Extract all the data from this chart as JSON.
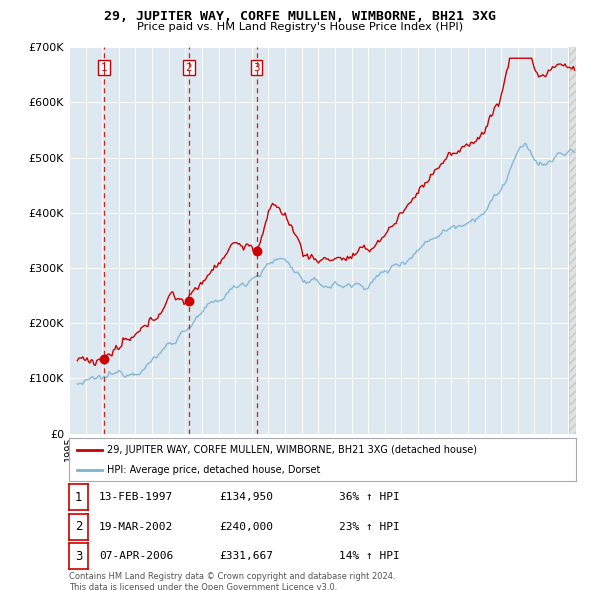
{
  "title": "29, JUPITER WAY, CORFE MULLEN, WIMBORNE, BH21 3XG",
  "subtitle": "Price paid vs. HM Land Registry's House Price Index (HPI)",
  "legend_line1": "29, JUPITER WAY, CORFE MULLEN, WIMBORNE, BH21 3XG (detached house)",
  "legend_line2": "HPI: Average price, detached house, Dorset",
  "footer1": "Contains HM Land Registry data © Crown copyright and database right 2024.",
  "footer2": "This data is licensed under the Open Government Licence v3.0.",
  "sale_dates_num": [
    1997.12,
    2002.22,
    2006.28
  ],
  "sale_prices": [
    134950,
    240000,
    331667
  ],
  "sale_labels": [
    "1",
    "2",
    "3"
  ],
  "sale_info": [
    {
      "label": "1",
      "date": "13-FEB-1997",
      "price": "£134,950",
      "hpi": "36% ↑ HPI"
    },
    {
      "label": "2",
      "date": "19-MAR-2002",
      "price": "£240,000",
      "hpi": "23% ↑ HPI"
    },
    {
      "label": "3",
      "date": "07-APR-2006",
      "price": "£331,667",
      "hpi": "14% ↑ HPI"
    }
  ],
  "hpi_color": "#7ab3d4",
  "price_color": "#cc0000",
  "plot_bg": "#dde8f0",
  "vline_color": "#cc0000",
  "grid_color": "#ffffff",
  "ylim": [
    0,
    700000
  ],
  "xlim_start": 1995.5,
  "xlim_end": 2025.5
}
